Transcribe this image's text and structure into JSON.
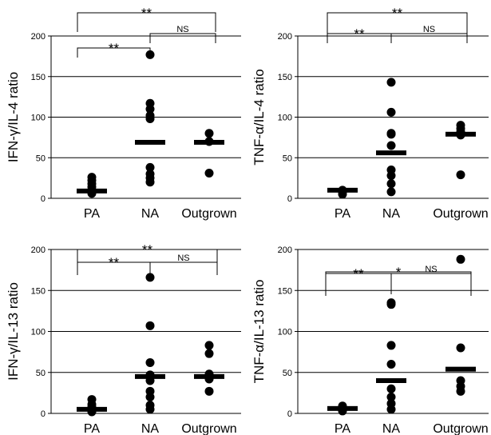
{
  "chart_data": [
    {
      "type": "scatter",
      "ylabel": "IFN-γ/IL-4 ratio",
      "categories": [
        "PA",
        "NA",
        "Outgrown"
      ],
      "ylim": [
        0,
        200
      ],
      "yticks": [
        "0",
        "50",
        "100",
        "150",
        "200"
      ],
      "grid": true,
      "points": [
        [
          6,
          8,
          10,
          14,
          18,
          22,
          26
        ],
        [
          20,
          25,
          30,
          38,
          98,
          102,
          110,
          117,
          177
        ],
        [
          31,
          70,
          80
        ]
      ],
      "medians": [
        9,
        69,
        69
      ],
      "brackets": [
        {
          "from": "PA",
          "to": "NA",
          "label": "**"
        },
        {
          "from": "NA",
          "to": "Outgrown",
          "label": "NS"
        },
        {
          "from": "PA",
          "to": "Outgrown",
          "label": "**"
        }
      ]
    },
    {
      "type": "scatter",
      "ylabel": "TNF-α/IL-4 ratio",
      "categories": [
        "PA",
        "NA",
        "Outgrown"
      ],
      "ylim": [
        0,
        200
      ],
      "yticks": [
        "0",
        "50",
        "100",
        "150",
        "200"
      ],
      "grid": true,
      "points": [
        [
          5,
          8,
          10
        ],
        [
          8,
          18,
          28,
          35,
          65,
          79,
          80,
          106,
          143
        ],
        [
          29,
          78,
          82,
          86,
          90
        ]
      ],
      "medians": [
        10,
        56,
        79
      ],
      "brackets": [
        {
          "from": "PA",
          "to": "NA",
          "label": "**"
        },
        {
          "from": "NA",
          "to": "Outgrown",
          "label": "NS"
        },
        {
          "from": "PA",
          "to": "Outgrown",
          "label": "**"
        }
      ]
    },
    {
      "type": "scatter",
      "ylabel": "IFN-γ/IL-13 ratio",
      "categories": [
        "PA",
        "NA",
        "Outgrown"
      ],
      "ylim": [
        0,
        200
      ],
      "yticks": [
        "0",
        "50",
        "100",
        "150",
        "200"
      ],
      "grid": true,
      "points": [
        [
          2,
          5,
          8,
          11,
          17
        ],
        [
          5,
          10,
          20,
          27,
          40,
          47,
          62,
          107,
          166
        ],
        [
          27,
          42,
          48,
          73,
          83
        ]
      ],
      "medians": [
        5,
        45,
        45
      ],
      "brackets": [
        {
          "from": "PA",
          "to": "NA",
          "label": "**"
        },
        {
          "from": "NA",
          "to": "Outgrown",
          "label": "NS"
        },
        {
          "from": "PA",
          "to": "Outgrown",
          "label": "**"
        }
      ]
    },
    {
      "type": "scatter",
      "ylabel": "TNF-α/IL-13 ratio",
      "categories": [
        "PA",
        "NA",
        "Outgrown"
      ],
      "ylim": [
        0,
        200
      ],
      "yticks": [
        "0",
        "50",
        "100",
        "150",
        "200"
      ],
      "grid": true,
      "points": [
        [
          3,
          6,
          9
        ],
        [
          5,
          12,
          20,
          30,
          60,
          83,
          133,
          135
        ],
        [
          27,
          33,
          40,
          80,
          188
        ]
      ],
      "medians": [
        6,
        40,
        54
      ],
      "brackets": [
        {
          "from": "PA",
          "to": "NA",
          "label": "**"
        },
        {
          "from": "NA",
          "to": "Outgrown",
          "label": "NS"
        },
        {
          "from": "PA",
          "to": "Outgrown",
          "label": "*"
        }
      ]
    }
  ]
}
